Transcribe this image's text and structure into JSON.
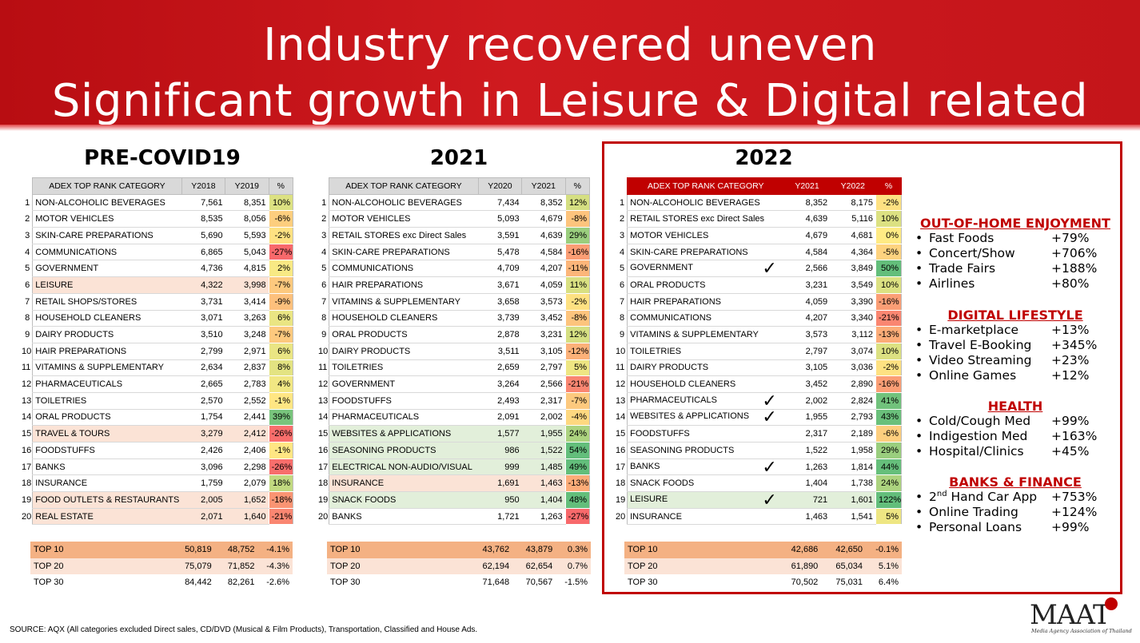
{
  "title": {
    "line1": "Industry recovered uneven",
    "line2": "Significant growth in Leisure & Digital related"
  },
  "colors": {
    "header_red": "#c4151a",
    "box_red": "#c00000",
    "highlight_peach": "#fbe3d6",
    "highlight_green": "#e2efda",
    "top10_fill": "#f4b183",
    "pct_green": "#63be7b",
    "pct_yellow": "#ffeb84",
    "pct_red": "#f8696b"
  },
  "tables": [
    {
      "heading": "PRE-COVID19",
      "columns": [
        "ADEX TOP RANK CATEGORY",
        "Y2018",
        "Y2019",
        "%"
      ],
      "rows": [
        {
          "rank": "1",
          "cat": "NON-ALCOHOLIC BEVERAGES",
          "a": "7,561",
          "b": "8,351",
          "pct": "10%",
          "p": 10
        },
        {
          "rank": "2",
          "cat": "MOTOR VEHICLES",
          "a": "8,535",
          "b": "8,056",
          "pct": "-6%",
          "p": -6
        },
        {
          "rank": "3",
          "cat": "SKIN-CARE PREPARATIONS",
          "a": "5,690",
          "b": "5,593",
          "pct": "-2%",
          "p": -2
        },
        {
          "rank": "4",
          "cat": "COMMUNICATIONS",
          "a": "6,865",
          "b": "5,043",
          "pct": "-27%",
          "p": -27
        },
        {
          "rank": "5",
          "cat": "GOVERNMENT",
          "a": "4,736",
          "b": "4,815",
          "pct": "2%",
          "p": 2
        },
        {
          "rank": "6",
          "cat": "LEISURE",
          "a": "4,322",
          "b": "3,998",
          "pct": "-7%",
          "p": -7,
          "hl": "p"
        },
        {
          "rank": "7",
          "cat": "RETAIL SHOPS/STORES",
          "a": "3,731",
          "b": "3,414",
          "pct": "-9%",
          "p": -9
        },
        {
          "rank": "8",
          "cat": "HOUSEHOLD CLEANERS",
          "a": "3,071",
          "b": "3,263",
          "pct": "6%",
          "p": 6
        },
        {
          "rank": "9",
          "cat": "DAIRY PRODUCTS",
          "a": "3,510",
          "b": "3,248",
          "pct": "-7%",
          "p": -7
        },
        {
          "rank": "10",
          "cat": "HAIR PREPARATIONS",
          "a": "2,799",
          "b": "2,971",
          "pct": "6%",
          "p": 6
        },
        {
          "rank": "11",
          "cat": "VITAMINS & SUPPLEMENTARY",
          "a": "2,634",
          "b": "2,837",
          "pct": "8%",
          "p": 8
        },
        {
          "rank": "12",
          "cat": "PHARMACEUTICALS",
          "a": "2,665",
          "b": "2,783",
          "pct": "4%",
          "p": 4
        },
        {
          "rank": "13",
          "cat": "TOILETRIES",
          "a": "2,570",
          "b": "2,552",
          "pct": "-1%",
          "p": -1
        },
        {
          "rank": "14",
          "cat": "ORAL PRODUCTS",
          "a": "1,754",
          "b": "2,441",
          "pct": "39%",
          "p": 39
        },
        {
          "rank": "15",
          "cat": "TRAVEL & TOURS",
          "a": "3,279",
          "b": "2,412",
          "pct": "-26%",
          "p": -26,
          "hl": "p"
        },
        {
          "rank": "16",
          "cat": "FOODSTUFFS",
          "a": "2,426",
          "b": "2,406",
          "pct": "-1%",
          "p": -1
        },
        {
          "rank": "17",
          "cat": "BANKS",
          "a": "3,096",
          "b": "2,298",
          "pct": "-26%",
          "p": -26
        },
        {
          "rank": "18",
          "cat": "INSURANCE",
          "a": "1,759",
          "b": "2,079",
          "pct": "18%",
          "p": 18
        },
        {
          "rank": "19",
          "cat": "FOOD OUTLETS & RESTAURANTS",
          "a": "2,005",
          "b": "1,652",
          "pct": "-18%",
          "p": -18,
          "hl": "p"
        },
        {
          "rank": "20",
          "cat": "REAL ESTATE",
          "a": "2,071",
          "b": "1,640",
          "pct": "-21%",
          "p": -21,
          "hl": "p"
        }
      ],
      "summary": [
        {
          "label": "TOP 10",
          "a": "50,819",
          "b": "48,752",
          "pct": "-4.1%"
        },
        {
          "label": "TOP 20",
          "a": "75,079",
          "b": "71,852",
          "pct": "-4.3%"
        },
        {
          "label": "TOP 30",
          "a": "84,442",
          "b": "82,261",
          "pct": "-2.6%"
        }
      ]
    },
    {
      "heading": "2021",
      "columns": [
        "ADEX TOP RANK CATEGORY",
        "Y2020",
        "Y2021",
        "%"
      ],
      "rows": [
        {
          "rank": "1",
          "cat": "NON-ALCOHOLIC BEVERAGES",
          "a": "7,434",
          "b": "8,352",
          "pct": "12%",
          "p": 12
        },
        {
          "rank": "2",
          "cat": "MOTOR VEHICLES",
          "a": "5,093",
          "b": "4,679",
          "pct": "-8%",
          "p": -8
        },
        {
          "rank": "3",
          "cat": "RETAIL STORES exc Direct Sales",
          "a": "3,591",
          "b": "4,639",
          "pct": "29%",
          "p": 29
        },
        {
          "rank": "4",
          "cat": "SKIN-CARE PREPARATIONS",
          "a": "5,478",
          "b": "4,584",
          "pct": "-16%",
          "p": -16
        },
        {
          "rank": "5",
          "cat": "COMMUNICATIONS",
          "a": "4,709",
          "b": "4,207",
          "pct": "-11%",
          "p": -11
        },
        {
          "rank": "6",
          "cat": "HAIR PREPARATIONS",
          "a": "3,671",
          "b": "4,059",
          "pct": "11%",
          "p": 11
        },
        {
          "rank": "7",
          "cat": "VITAMINS & SUPPLEMENTARY",
          "a": "3,658",
          "b": "3,573",
          "pct": "-2%",
          "p": -2
        },
        {
          "rank": "8",
          "cat": "HOUSEHOLD CLEANERS",
          "a": "3,739",
          "b": "3,452",
          "pct": "-8%",
          "p": -8
        },
        {
          "rank": "9",
          "cat": "ORAL PRODUCTS",
          "a": "2,878",
          "b": "3,231",
          "pct": "12%",
          "p": 12
        },
        {
          "rank": "10",
          "cat": "DAIRY PRODUCTS",
          "a": "3,511",
          "b": "3,105",
          "pct": "-12%",
          "p": -12
        },
        {
          "rank": "11",
          "cat": "TOILETRIES",
          "a": "2,659",
          "b": "2,797",
          "pct": "5%",
          "p": 5
        },
        {
          "rank": "12",
          "cat": "GOVERNMENT",
          "a": "3,264",
          "b": "2,566",
          "pct": "-21%",
          "p": -21
        },
        {
          "rank": "13",
          "cat": "FOODSTUFFS",
          "a": "2,493",
          "b": "2,317",
          "pct": "-7%",
          "p": -7
        },
        {
          "rank": "14",
          "cat": "PHARMACEUTICALS",
          "a": "2,091",
          "b": "2,002",
          "pct": "-4%",
          "p": -4
        },
        {
          "rank": "15",
          "cat": "WEBSITES & APPLICATIONS",
          "a": "1,577",
          "b": "1,955",
          "pct": "24%",
          "p": 24,
          "hl": "g"
        },
        {
          "rank": "16",
          "cat": "SEASONING PRODUCTS",
          "a": "986",
          "b": "1,522",
          "pct": "54%",
          "p": 54,
          "hl": "g"
        },
        {
          "rank": "17",
          "cat": "ELECTRICAL NON-AUDIO/VISUAL",
          "a": "999",
          "b": "1,485",
          "pct": "49%",
          "p": 49,
          "hl": "g"
        },
        {
          "rank": "18",
          "cat": "INSURANCE",
          "a": "1,691",
          "b": "1,463",
          "pct": "-13%",
          "p": -13,
          "hl": "p"
        },
        {
          "rank": "19",
          "cat": "SNACK FOODS",
          "a": "950",
          "b": "1,404",
          "pct": "48%",
          "p": 48,
          "hl": "g"
        },
        {
          "rank": "20",
          "cat": "BANKS",
          "a": "1,721",
          "b": "1,263",
          "pct": "-27%",
          "p": -27
        }
      ],
      "summary": [
        {
          "label": "TOP 10",
          "a": "43,762",
          "b": "43,879",
          "pct": "0.3%"
        },
        {
          "label": "TOP 20",
          "a": "62,194",
          "b": "62,654",
          "pct": "0.7%"
        },
        {
          "label": "TOP 30",
          "a": "71,648",
          "b": "70,567",
          "pct": "-1.5%"
        }
      ]
    },
    {
      "heading": "2022",
      "columns": [
        "ADEX TOP RANK CATEGORY",
        "Y2021",
        "Y2022",
        "%"
      ],
      "rows": [
        {
          "rank": "1",
          "cat": "NON-ALCOHOLIC BEVERAGES",
          "a": "8,352",
          "b": "8,175",
          "pct": "-2%",
          "p": -2
        },
        {
          "rank": "2",
          "cat": "RETAIL STORES exc Direct Sales",
          "a": "4,639",
          "b": "5,116",
          "pct": "10%",
          "p": 10
        },
        {
          "rank": "3",
          "cat": "MOTOR VEHICLES",
          "a": "4,679",
          "b": "4,681",
          "pct": "0%",
          "p": 0
        },
        {
          "rank": "4",
          "cat": "SKIN-CARE PREPARATIONS",
          "a": "4,584",
          "b": "4,364",
          "pct": "-5%",
          "p": -5
        },
        {
          "rank": "5",
          "cat": "GOVERNMENT",
          "a": "2,566",
          "b": "3,849",
          "pct": "50%",
          "p": 50,
          "check": true
        },
        {
          "rank": "6",
          "cat": "ORAL PRODUCTS",
          "a": "3,231",
          "b": "3,549",
          "pct": "10%",
          "p": 10
        },
        {
          "rank": "7",
          "cat": "HAIR PREPARATIONS",
          "a": "4,059",
          "b": "3,390",
          "pct": "-16%",
          "p": -16
        },
        {
          "rank": "8",
          "cat": "COMMUNICATIONS",
          "a": "4,207",
          "b": "3,340",
          "pct": "-21%",
          "p": -21
        },
        {
          "rank": "9",
          "cat": "VITAMINS & SUPPLEMENTARY",
          "a": "3,573",
          "b": "3,112",
          "pct": "-13%",
          "p": -13
        },
        {
          "rank": "10",
          "cat": "TOILETRIES",
          "a": "2,797",
          "b": "3,074",
          "pct": "10%",
          "p": 10
        },
        {
          "rank": "11",
          "cat": "DAIRY PRODUCTS",
          "a": "3,105",
          "b": "3,036",
          "pct": "-2%",
          "p": -2
        },
        {
          "rank": "12",
          "cat": "HOUSEHOLD CLEANERS",
          "a": "3,452",
          "b": "2,890",
          "pct": "-16%",
          "p": -16
        },
        {
          "rank": "13",
          "cat": "PHARMACEUTICALS",
          "a": "2,002",
          "b": "2,824",
          "pct": "41%",
          "p": 41,
          "check": true
        },
        {
          "rank": "14",
          "cat": "WEBSITES & APPLICATIONS",
          "a": "1,955",
          "b": "2,793",
          "pct": "43%",
          "p": 43,
          "check": true
        },
        {
          "rank": "15",
          "cat": "FOODSTUFFS",
          "a": "2,317",
          "b": "2,189",
          "pct": "-6%",
          "p": -6
        },
        {
          "rank": "16",
          "cat": "SEASONING PRODUCTS",
          "a": "1,522",
          "b": "1,958",
          "pct": "29%",
          "p": 29
        },
        {
          "rank": "17",
          "cat": "BANKS",
          "a": "1,263",
          "b": "1,814",
          "pct": "44%",
          "p": 44,
          "check": true
        },
        {
          "rank": "18",
          "cat": "SNACK FOODS",
          "a": "1,404",
          "b": "1,738",
          "pct": "24%",
          "p": 24
        },
        {
          "rank": "19",
          "cat": "LEISURE",
          "a": "721",
          "b": "1,601",
          "pct": "122%",
          "p": 122,
          "hl": "g",
          "check": true
        },
        {
          "rank": "20",
          "cat": "INSURANCE",
          "a": "1,463",
          "b": "1,541",
          "pct": "5%",
          "p": 5
        }
      ],
      "summary": [
        {
          "label": "TOP 10",
          "a": "42,686",
          "b": "42,650",
          "pct": "-0.1%"
        },
        {
          "label": "TOP 20",
          "a": "61,890",
          "b": "65,034",
          "pct": "5.1%"
        },
        {
          "label": "TOP 30",
          "a": "70,502",
          "b": "75,031",
          "pct": "6.4%"
        }
      ]
    }
  ],
  "check_glyph": "✓",
  "highlights": [
    {
      "title": "OUT-OF-HOME ENJOYMENT",
      "items": [
        {
          "label": "Fast Foods",
          "value": "+79%"
        },
        {
          "label": "Concert/Show",
          "value": "+706%"
        },
        {
          "label": "Trade Fairs",
          "value": "+188%"
        },
        {
          "label": "Airlines",
          "value": "+80%"
        }
      ]
    },
    {
      "title": "DIGITAL LIFESTYLE",
      "items": [
        {
          "label": "E-marketplace",
          "value": "+13%"
        },
        {
          "label": "Travel E-Booking",
          "value": "+345%"
        },
        {
          "label": "Video Streaming",
          "value": "+23%"
        },
        {
          "label": "Online Games",
          "value": "+12%"
        }
      ]
    },
    {
      "title": "HEALTH",
      "items": [
        {
          "label": "Cold/Cough Med",
          "value": "+99%"
        },
        {
          "label": "Indigestion Med",
          "value": "+163%"
        },
        {
          "label": "Hospital/Clinics",
          "value": "+45%"
        }
      ]
    },
    {
      "title": "BANKS & FINANCE",
      "items": [
        {
          "label_sup": "nd",
          "label_pre": "2",
          "label_post": " Hand Car App",
          "value": "+753%"
        },
        {
          "label": "Online Trading",
          "value": "+124%"
        },
        {
          "label": "Personal Loans",
          "value": "+99%"
        }
      ]
    }
  ],
  "bullet": "•",
  "source": "SOURCE: AQX (All categories excluded Direct sales, CD/DVD (Musical & Film Products), Transportation, Classified and House Ads.",
  "logo": {
    "text": "MAAT",
    "subtitle": "Media Agency Association of Thailand"
  }
}
